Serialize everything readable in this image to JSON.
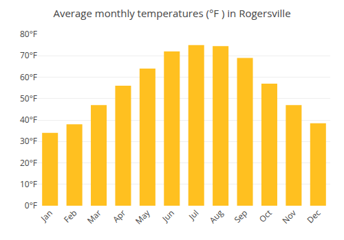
{
  "chart_data": {
    "type": "bar",
    "title": "Average monthly temperatures (°F ) in Rogersville",
    "categories": [
      "Jan",
      "Feb",
      "Mar",
      "Apr",
      "May",
      "Jun",
      "Jul",
      "Aug",
      "Sep",
      "Oct",
      "Nov",
      "Dec"
    ],
    "values": [
      34,
      38,
      47,
      56,
      64,
      72,
      75,
      74.5,
      69,
      57,
      47,
      38.5
    ],
    "color": "#FFC020",
    "ylim": [
      0,
      80
    ],
    "yticks": [
      {
        "value": 0,
        "label": "0°F"
      },
      {
        "value": 10,
        "label": "10°F"
      },
      {
        "value": 20,
        "label": "20°F"
      },
      {
        "value": 30,
        "label": "30°F"
      },
      {
        "value": 40,
        "label": "40°F"
      },
      {
        "value": 50,
        "label": "50°F"
      },
      {
        "value": 60,
        "label": "60°F"
      },
      {
        "value": 70,
        "label": "70°F"
      },
      {
        "value": 80,
        "label": "80°F"
      }
    ],
    "grid": true
  }
}
